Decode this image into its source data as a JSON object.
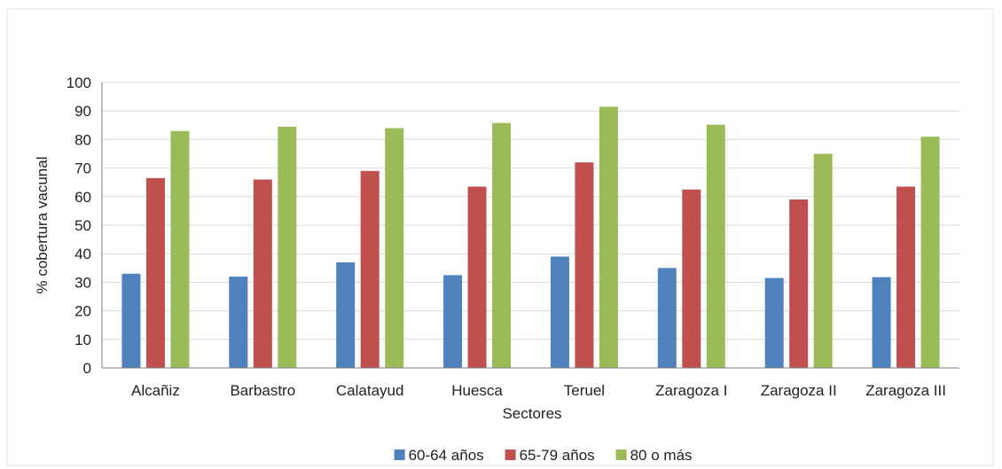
{
  "chart_data": {
    "type": "bar",
    "title": "",
    "xlabel": "Sectores",
    "ylabel": "% cobertura vacunal",
    "ylim": [
      0,
      100
    ],
    "yticks": [
      0,
      10,
      20,
      30,
      40,
      50,
      60,
      70,
      80,
      90,
      100
    ],
    "grid": true,
    "legend_position": "bottom",
    "categories": [
      "Alcañiz",
      "Barbastro",
      "Calatayud",
      "Huesca",
      "Teruel",
      "Zaragoza I",
      "Zaragoza II",
      "Zaragoza III"
    ],
    "series": [
      {
        "name": "60-64 años",
        "color": "#4F81BD",
        "values": [
          33,
          32,
          37,
          32.5,
          39,
          35,
          31.5,
          31.8
        ]
      },
      {
        "name": "65-79 años",
        "color": "#C0504D",
        "values": [
          66.5,
          66,
          69,
          63.5,
          72,
          62.5,
          59,
          63.5
        ]
      },
      {
        "name": "80 o más",
        "color": "#9BBB59",
        "values": [
          83,
          84.5,
          84,
          85.8,
          91.5,
          85.2,
          75,
          81
        ]
      }
    ]
  }
}
